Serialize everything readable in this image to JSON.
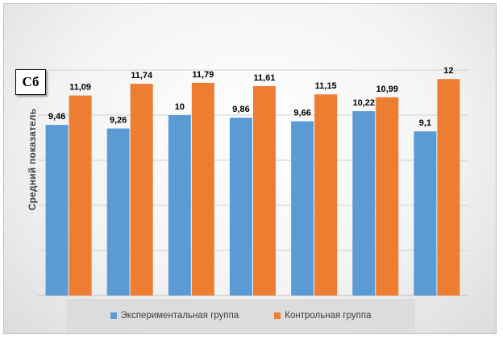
{
  "panel_label": "Сб",
  "chart_data": {
    "type": "bar",
    "categories": [
      "",
      "",
      "",
      "",
      "",
      "",
      ""
    ],
    "ylabel": "Средний показатель",
    "xlabel": "",
    "ylim": [
      0,
      14
    ],
    "grid": true,
    "legend_position": "bottom",
    "series": [
      {
        "name": "Экспериментальная группа",
        "color": "#5b9bd5",
        "values": [
          9.46,
          9.26,
          10,
          9.86,
          9.66,
          10.22,
          9.1
        ],
        "labels": [
          "9,46",
          "9,26",
          "10",
          "9,86",
          "9,66",
          "10,22",
          "9,1"
        ]
      },
      {
        "name": "Контрольная группа",
        "color": "#ed7d31",
        "values": [
          11.09,
          11.74,
          11.79,
          11.61,
          11.15,
          10.99,
          12
        ],
        "labels": [
          "11,09",
          "11,74",
          "11,79",
          "11,61",
          "11,15",
          "10,99",
          "12"
        ]
      }
    ]
  }
}
